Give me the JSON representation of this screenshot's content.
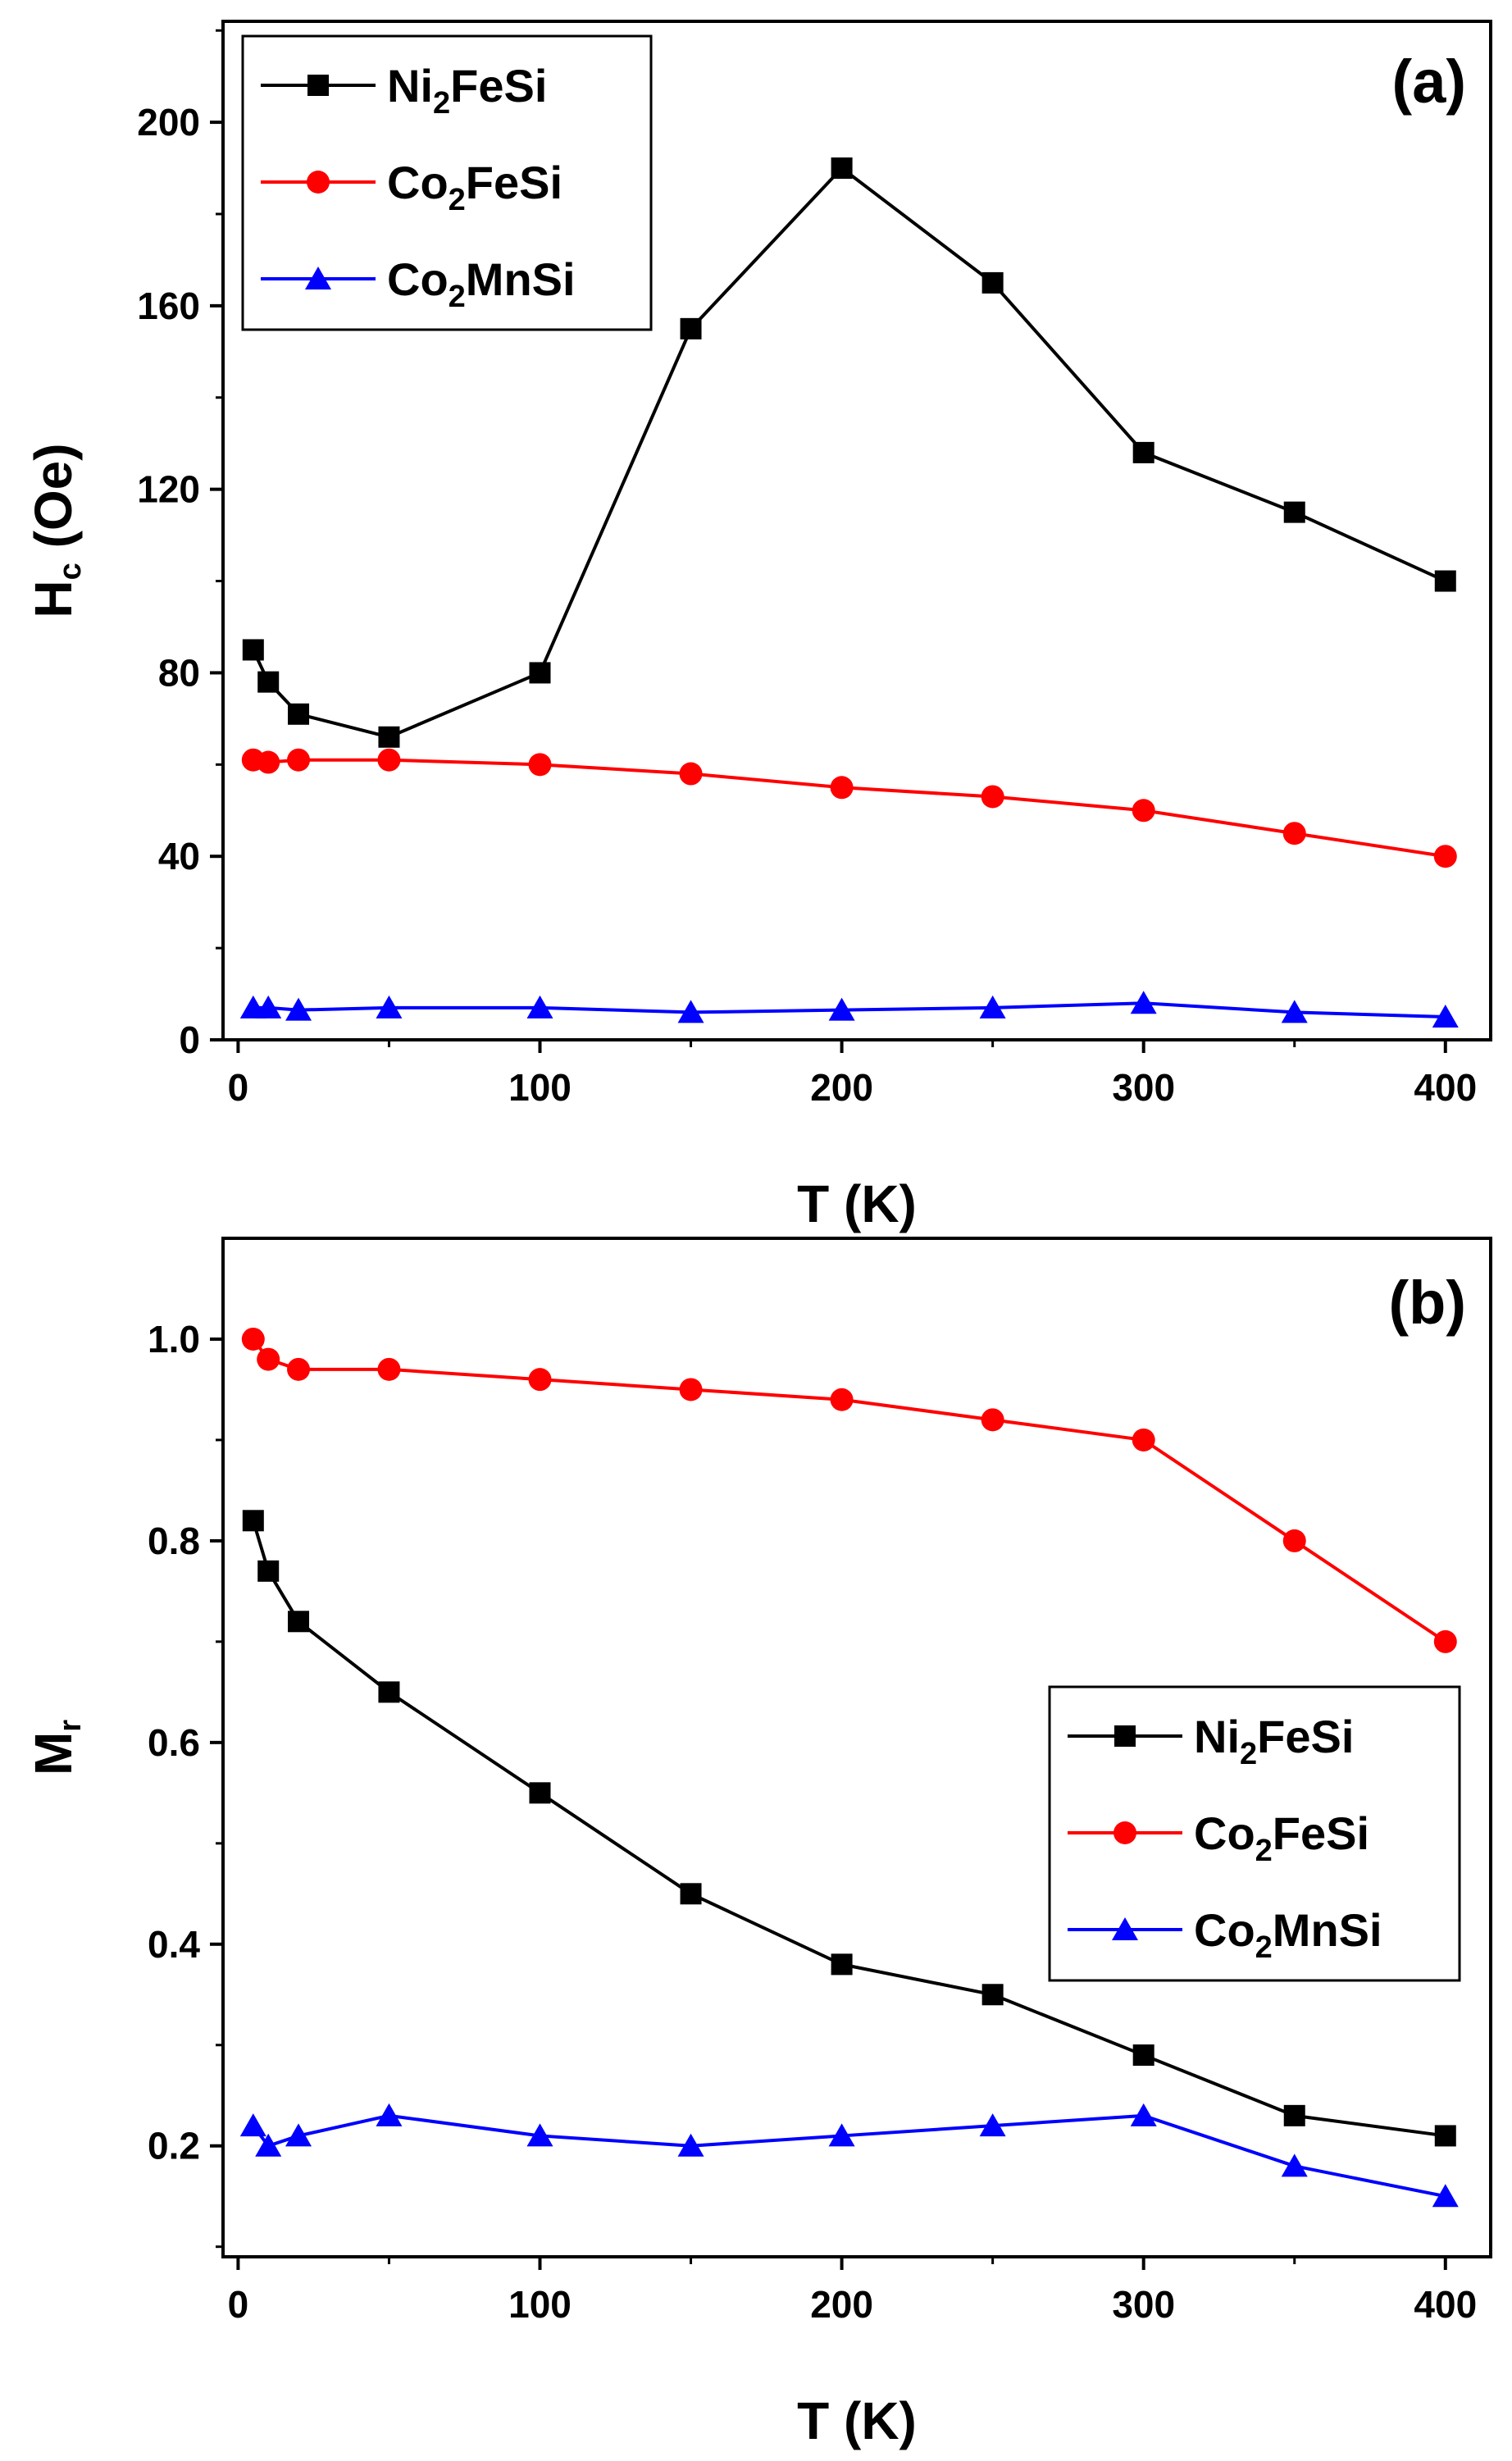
{
  "chart_data": [
    {
      "type": "line",
      "panel_label": "(a)",
      "xlabel": "T (K)",
      "ylabel": {
        "main": "H",
        "sub": "c",
        "rest": " (Oe)"
      },
      "xlim": [
        -5,
        415
      ],
      "ylim": [
        0,
        222
      ],
      "xticks": [
        0,
        100,
        200,
        300,
        400
      ],
      "yticks": [
        0,
        40,
        80,
        120,
        160,
        200
      ],
      "grid": false,
      "legend_position": "top-left",
      "x": [
        5,
        10,
        20,
        50,
        100,
        150,
        200,
        250,
        300,
        350,
        400
      ],
      "series": [
        {
          "name": {
            "pre": "Ni",
            "sub": "2",
            "post": "FeSi"
          },
          "color": "#000000",
          "marker": "square",
          "values": [
            85,
            78,
            71,
            66,
            80,
            155,
            190,
            165,
            128,
            115,
            100
          ]
        },
        {
          "name": {
            "pre": "Co",
            "sub": "2",
            "post": "FeSi"
          },
          "color": "#ff0000",
          "marker": "circle",
          "values": [
            61,
            60.5,
            61,
            61,
            60,
            58,
            55,
            53,
            50,
            45,
            40
          ]
        },
        {
          "name": {
            "pre": "Co",
            "sub": "2",
            "post": "MnSi"
          },
          "color": "#0000ff",
          "marker": "triangle",
          "values": [
            7,
            7,
            6.5,
            7,
            7,
            6,
            6.5,
            7,
            8,
            6,
            5
          ]
        }
      ]
    },
    {
      "type": "line",
      "panel_label": "(b)",
      "xlabel": "T (K)",
      "ylabel": {
        "main": "M",
        "sub": "r",
        "rest": ""
      },
      "xlim": [
        -5,
        415
      ],
      "ylim": [
        0.09,
        1.1
      ],
      "xticks": [
        0,
        100,
        200,
        300,
        400
      ],
      "yticks": [
        0.2,
        0.4,
        0.6,
        0.8,
        1.0
      ],
      "ytick_labels": [
        "0.2",
        "0.4",
        "0.6",
        "0.8",
        "1.0"
      ],
      "grid": false,
      "legend_position": "right-middle",
      "x": [
        5,
        10,
        20,
        50,
        100,
        150,
        200,
        250,
        300,
        350,
        400
      ],
      "series": [
        {
          "name": {
            "pre": "Ni",
            "sub": "2",
            "post": "FeSi"
          },
          "color": "#000000",
          "marker": "square",
          "values": [
            0.82,
            0.77,
            0.72,
            0.65,
            0.55,
            0.45,
            0.38,
            0.35,
            0.29,
            0.23,
            0.21
          ]
        },
        {
          "name": {
            "pre": "Co",
            "sub": "2",
            "post": "FeSi"
          },
          "color": "#ff0000",
          "marker": "circle",
          "values": [
            1.0,
            0.98,
            0.97,
            0.97,
            0.96,
            0.95,
            0.94,
            0.92,
            0.9,
            0.8,
            0.7
          ]
        },
        {
          "name": {
            "pre": "Co",
            "sub": "2",
            "post": "MnSi"
          },
          "color": "#0000ff",
          "marker": "triangle",
          "values": [
            0.22,
            0.2,
            0.21,
            0.23,
            0.21,
            0.2,
            0.21,
            0.22,
            0.23,
            0.18,
            0.15
          ]
        }
      ]
    }
  ]
}
